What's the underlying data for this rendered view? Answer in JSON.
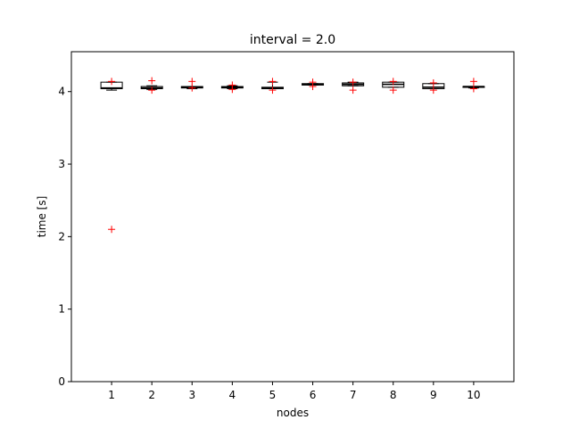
{
  "chart_data": {
    "type": "box",
    "title": "interval = 2.0",
    "xlabel": "nodes",
    "ylabel": "time [s]",
    "ylim": [
      0,
      4.55
    ],
    "yticks": [
      0,
      1,
      2,
      3,
      4
    ],
    "categories": [
      "1",
      "2",
      "3",
      "4",
      "5",
      "6",
      "7",
      "8",
      "9",
      "10"
    ],
    "grid": false,
    "boxes": [
      {
        "category": "1",
        "whisker_low": 4.02,
        "q1": 4.04,
        "median": 4.05,
        "q3": 4.13,
        "whisker_high": 4.13,
        "outliers": [
          4.14,
          2.1
        ]
      },
      {
        "category": "2",
        "whisker_low": 4.03,
        "q1": 4.04,
        "median": 4.05,
        "q3": 4.07,
        "whisker_high": 4.08,
        "outliers": [
          4.15,
          4.02
        ]
      },
      {
        "category": "3",
        "whisker_low": 4.04,
        "q1": 4.05,
        "median": 4.06,
        "q3": 4.07,
        "whisker_high": 4.07,
        "outliers": [
          4.14,
          4.05
        ]
      },
      {
        "category": "4",
        "whisker_low": 4.04,
        "q1": 4.05,
        "median": 4.06,
        "q3": 4.07,
        "whisker_high": 4.08,
        "outliers": [
          4.09,
          4.03
        ]
      },
      {
        "category": "5",
        "whisker_low": 4.04,
        "q1": 4.04,
        "median": 4.05,
        "q3": 4.06,
        "whisker_high": 4.13,
        "outliers": [
          4.14,
          4.02
        ]
      },
      {
        "category": "6",
        "whisker_low": 4.09,
        "q1": 4.09,
        "median": 4.1,
        "q3": 4.11,
        "whisker_high": 4.11,
        "outliers": [
          4.13,
          4.07
        ]
      },
      {
        "category": "7",
        "whisker_low": 4.08,
        "q1": 4.08,
        "median": 4.1,
        "q3": 4.12,
        "whisker_high": 4.13,
        "outliers": [
          4.13,
          4.02
        ]
      },
      {
        "category": "8",
        "whisker_low": 4.06,
        "q1": 4.06,
        "median": 4.1,
        "q3": 4.13,
        "whisker_high": 4.13,
        "outliers": [
          4.14,
          4.02
        ]
      },
      {
        "category": "9",
        "whisker_low": 4.04,
        "q1": 4.04,
        "median": 4.06,
        "q3": 4.11,
        "whisker_high": 4.11,
        "outliers": [
          4.12,
          4.02
        ]
      },
      {
        "category": "10",
        "whisker_low": 4.05,
        "q1": 4.06,
        "median": 4.07,
        "q3": 4.07,
        "whisker_high": 4.07,
        "outliers": [
          4.14,
          4.04
        ]
      }
    ],
    "colors": {
      "box": "#000000",
      "median": "#000000",
      "outlier": "#ff0000"
    }
  }
}
